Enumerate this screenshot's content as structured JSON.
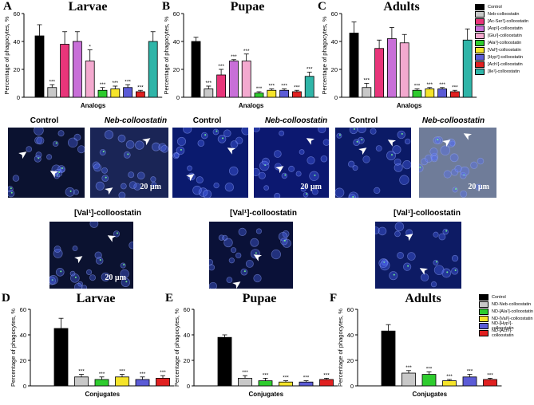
{
  "panels": {
    "A": {
      "letter": "A",
      "title": "Larvae"
    },
    "B": {
      "letter": "B",
      "title": "Pupae"
    },
    "C": {
      "letter": "C",
      "title": "Adults"
    },
    "D": {
      "letter": "D",
      "title": "Larvae"
    },
    "E": {
      "letter": "E",
      "title": "Pupae"
    },
    "F": {
      "letter": "F",
      "title": "Adults"
    }
  },
  "legend_top": [
    {
      "label": "Control",
      "color": "#000000"
    },
    {
      "label": "Neb-colloostatin",
      "color": "#c8c8c8"
    },
    {
      "label": "[Ac-Ser¹]-colloostatin",
      "color": "#e8357a"
    },
    {
      "label": "[Asp¹]-colloostatin",
      "color": "#c86fd8"
    },
    {
      "label": "[Glu¹]-colloostatin",
      "color": "#f3a9cf"
    },
    {
      "label": "[Ala¹]-colloostatin",
      "color": "#2ecc2e"
    },
    {
      "label": "[Val¹]-colloostatin",
      "color": "#f5e42a"
    },
    {
      "label": "[Hyp¹]-colloostatin",
      "color": "#5b5bd6"
    },
    {
      "label": "[Ach¹]-colloostatin",
      "color": "#e02020"
    },
    {
      "label": "[Ile¹]-colloostatin",
      "color": "#2fb5a8"
    }
  ],
  "legend_bottom": [
    {
      "label": "Control",
      "color": "#000000"
    },
    {
      "label": "ND-Neb-colloostatin",
      "color": "#c8c8c8"
    },
    {
      "label": "ND-[Ala¹]-colloostatin",
      "color": "#2ecc2e"
    },
    {
      "label": "ND-[Val¹]-colloostatin",
      "color": "#f5e42a"
    },
    {
      "label": "ND-[Hyp¹]-colloostatin",
      "color": "#5b5bd6"
    },
    {
      "label": "ND-[Ach¹]-colloostatin",
      "color": "#e02020"
    }
  ],
  "micrographs": {
    "control_label": "Control",
    "neb_label": "Neb-colloostatin",
    "val_label": "[Val¹]-colloostatin",
    "scale_text": "20 µm"
  },
  "chart_data": [
    {
      "id": "A",
      "type": "bar",
      "title": "Larvae",
      "xlabel": "Analogs",
      "ylabel": "Percentage of phagocytes, %",
      "ylim": [
        0,
        60
      ],
      "yticks": [
        0,
        20,
        40,
        60
      ],
      "categories": [
        "Control",
        "Neb-colloostatin",
        "[Ac-Ser¹]-colloostatin",
        "[Asp¹]-colloostatin",
        "[Glu¹]-colloostatin",
        "[Ala¹]-colloostatin",
        "[Val¹]-colloostatin",
        "[Hyp¹]-colloostatin",
        "[Ach¹]-colloostatin",
        "[Ile¹]-colloostatin"
      ],
      "values": [
        44,
        7,
        38,
        40,
        26,
        5,
        6,
        7,
        4,
        40
      ],
      "errors": [
        8,
        2,
        9,
        7,
        8,
        2,
        2,
        2,
        1,
        7
      ],
      "annotations": [
        "",
        "***",
        "",
        "",
        "*",
        "***",
        "***",
        "***",
        "***",
        ""
      ]
    },
    {
      "id": "B",
      "type": "bar",
      "title": "Pupae",
      "xlabel": "Analogs",
      "ylabel": "Percentage of phagocytes, %",
      "ylim": [
        0,
        60
      ],
      "yticks": [
        0,
        20,
        40,
        60
      ],
      "categories": [
        "Control",
        "Neb-colloostatin",
        "[Ac-Ser¹]-colloostatin",
        "[Asp¹]-colloostatin",
        "[Glu¹]-colloostatin",
        "[Ala¹]-colloostatin",
        "[Val¹]-colloostatin",
        "[Hyp¹]-colloostatin",
        "[Ach¹]-colloostatin",
        "[Ile¹]-colloostatin"
      ],
      "values": [
        40,
        6,
        16,
        26,
        26,
        3,
        5,
        5,
        4,
        15
      ],
      "errors": [
        3,
        2,
        4,
        1,
        5,
        1,
        1,
        1,
        1,
        3
      ],
      "annotations": [
        "",
        "***",
        "***",
        "***",
        "***",
        "***",
        "***",
        "***",
        "***",
        "***"
      ]
    },
    {
      "id": "C",
      "type": "bar",
      "title": "Adults",
      "xlabel": "Analogs",
      "ylabel": "Percentage of phagocytes, %",
      "ylim": [
        0,
        60
      ],
      "yticks": [
        0,
        20,
        40,
        60
      ],
      "categories": [
        "Control",
        "Neb-colloostatin",
        "[Ac-Ser¹]-colloostatin",
        "[Asp¹]-colloostatin",
        "[Glu¹]-colloostatin",
        "[Ala¹]-colloostatin",
        "[Val¹]-colloostatin",
        "[Hyp¹]-colloostatin",
        "[Ach¹]-colloostatin",
        "[Ile¹]-colloostatin"
      ],
      "values": [
        46,
        7,
        35,
        42,
        39,
        5,
        6,
        6,
        4,
        41
      ],
      "errors": [
        8,
        3,
        6,
        8,
        6,
        1,
        1,
        1,
        1,
        8
      ],
      "annotations": [
        "",
        "***",
        "",
        "",
        "",
        "***",
        "***",
        "***",
        "***",
        ""
      ]
    },
    {
      "id": "D",
      "type": "bar",
      "title": "Larvae",
      "xlabel": "Conjugates",
      "ylabel": "Percentage of phagocytes, %",
      "ylim": [
        0,
        60
      ],
      "yticks": [
        0,
        20,
        40,
        60
      ],
      "categories": [
        "Control",
        "ND-Neb-colloostatin",
        "ND-[Ala¹]-colloostatin",
        "ND-[Val¹]-colloostatin",
        "ND-[Hyp¹]-colloostatin",
        "ND-[Ach¹]-colloostatin"
      ],
      "values": [
        45,
        7,
        5,
        7,
        5,
        6
      ],
      "errors": [
        8,
        2,
        2,
        2,
        2,
        2
      ],
      "annotations": [
        "",
        "***",
        "***",
        "***",
        "***",
        "***"
      ]
    },
    {
      "id": "E",
      "type": "bar",
      "title": "Pupae",
      "xlabel": "Conjugates",
      "ylabel": "Percentage of phagocytes, %",
      "ylim": [
        0,
        60
      ],
      "yticks": [
        0,
        20,
        40,
        60
      ],
      "categories": [
        "Control",
        "ND-Neb-colloostatin",
        "ND-[Ala¹]-colloostatin",
        "ND-[Val¹]-colloostatin",
        "ND-[Hyp¹]-colloostatin",
        "ND-[Ach¹]-colloostatin"
      ],
      "values": [
        38,
        6,
        4,
        3,
        3,
        5
      ],
      "errors": [
        2,
        2,
        2,
        1,
        1,
        1
      ],
      "annotations": [
        "",
        "***",
        "***",
        "***",
        "***",
        "***"
      ]
    },
    {
      "id": "F",
      "type": "bar",
      "title": "Adults",
      "xlabel": "Conjugates",
      "ylabel": "Percentage of phagocytes, %",
      "ylim": [
        0,
        60
      ],
      "yticks": [
        0,
        20,
        40,
        60
      ],
      "categories": [
        "Control",
        "ND-Neb-colloostatin",
        "ND-[Ala¹]-colloostatin",
        "ND-[Val¹]-colloostatin",
        "ND-[Hyp¹]-colloostatin",
        "ND-[Ach¹]-colloostatin"
      ],
      "values": [
        43,
        10,
        9,
        4,
        7,
        5
      ],
      "errors": [
        5,
        2,
        2,
        1,
        2,
        1
      ],
      "annotations": [
        "",
        "***",
        "***",
        "***",
        "***",
        "***"
      ]
    }
  ]
}
